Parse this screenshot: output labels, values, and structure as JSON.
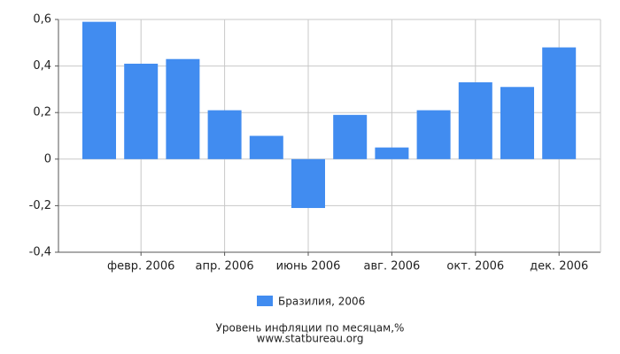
{
  "chart_data": {
    "type": "bar",
    "title": "Уровень инфляции по месяцам,%",
    "source": "www.statbureau.org",
    "categories": [
      null,
      "февр. 2006",
      null,
      "апр. 2006",
      null,
      "июнь 2006",
      null,
      "авг. 2006",
      null,
      "окт. 2006",
      null,
      "дек. 2006"
    ],
    "series": [
      {
        "name": "Бразилия, 2006",
        "color": "#418cf0",
        "values": [
          0.59,
          0.41,
          0.43,
          0.21,
          0.1,
          -0.21,
          0.19,
          0.05,
          0.21,
          0.33,
          0.31,
          0.48
        ]
      }
    ],
    "ylim": [
      -0.4,
      0.6
    ],
    "yticks": [
      {
        "value": -0.4,
        "label": "-0,4"
      },
      {
        "value": -0.2,
        "label": "-0,2"
      },
      0,
      {
        "value": 0.2,
        "label": "0,2"
      },
      {
        "value": 0.4,
        "label": "0,4"
      },
      {
        "value": 0.6,
        "label": "0,6"
      }
    ],
    "grid": true
  }
}
